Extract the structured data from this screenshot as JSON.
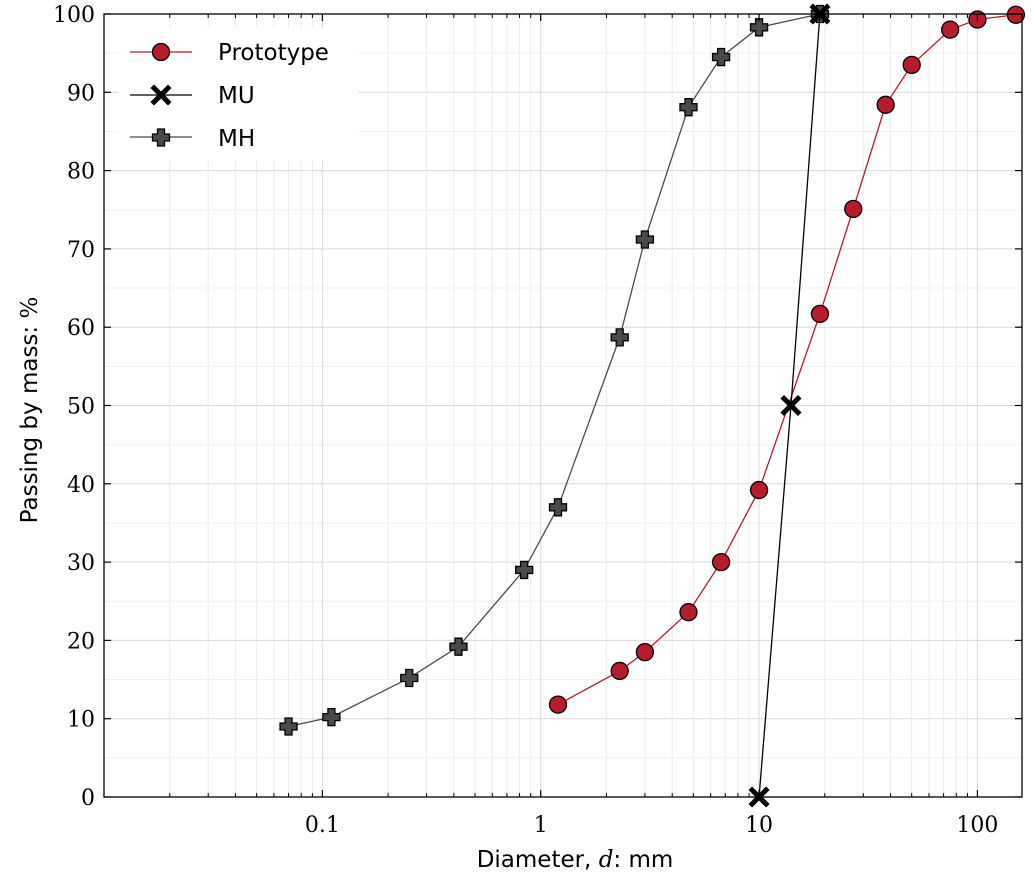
{
  "chart_data": {
    "type": "line",
    "xscale": "log",
    "xlim": [
      0.01,
      160
    ],
    "ylim": [
      0,
      100
    ],
    "xticks": [
      {
        "value": 0.1,
        "label": "0.1"
      },
      {
        "value": 1,
        "label": "1"
      },
      {
        "value": 10,
        "label": "10"
      },
      {
        "value": 100,
        "label": "100"
      }
    ],
    "yticks": [
      {
        "value": 0,
        "label": "0"
      },
      {
        "value": 10,
        "label": "10"
      },
      {
        "value": 20,
        "label": "20"
      },
      {
        "value": 30,
        "label": "30"
      },
      {
        "value": 40,
        "label": "40"
      },
      {
        "value": 50,
        "label": "50"
      },
      {
        "value": 60,
        "label": "60"
      },
      {
        "value": 70,
        "label": "70"
      },
      {
        "value": 80,
        "label": "80"
      },
      {
        "value": 90,
        "label": "90"
      },
      {
        "value": 100,
        "label": "100"
      }
    ],
    "xlabel": {
      "prefix": "Diameter, ",
      "variable": "d",
      "suffix": ": mm"
    },
    "ylabel": {
      "prefix": "Passing by mass: ",
      "symbol": "%"
    },
    "grid": true,
    "legend_position": "top-left",
    "series": [
      {
        "name": "Prototype",
        "marker": "circle",
        "color": "#b71c2c",
        "x": [
          1.2,
          2.3,
          3.0,
          4.75,
          6.7,
          10,
          19,
          27,
          38,
          50,
          75,
          100,
          150
        ],
        "y": [
          11.8,
          16.1,
          18.5,
          23.6,
          30.0,
          39.2,
          61.7,
          75.1,
          88.4,
          93.5,
          98.0,
          99.3,
          99.9
        ]
      },
      {
        "name": "MU",
        "marker": "x",
        "color": "#000000",
        "x": [
          10,
          14,
          19
        ],
        "y": [
          0,
          50,
          100
        ]
      },
      {
        "name": "MH",
        "marker": "plus",
        "color": "#4a4a4a",
        "x": [
          0.07,
          0.11,
          0.25,
          0.42,
          0.84,
          1.2,
          2.3,
          3.0,
          4.75,
          6.7,
          10,
          19
        ],
        "y": [
          9.0,
          10.2,
          15.2,
          19.2,
          29.0,
          37.0,
          58.7,
          71.2,
          88.1,
          94.5,
          98.3,
          100
        ]
      }
    ]
  }
}
